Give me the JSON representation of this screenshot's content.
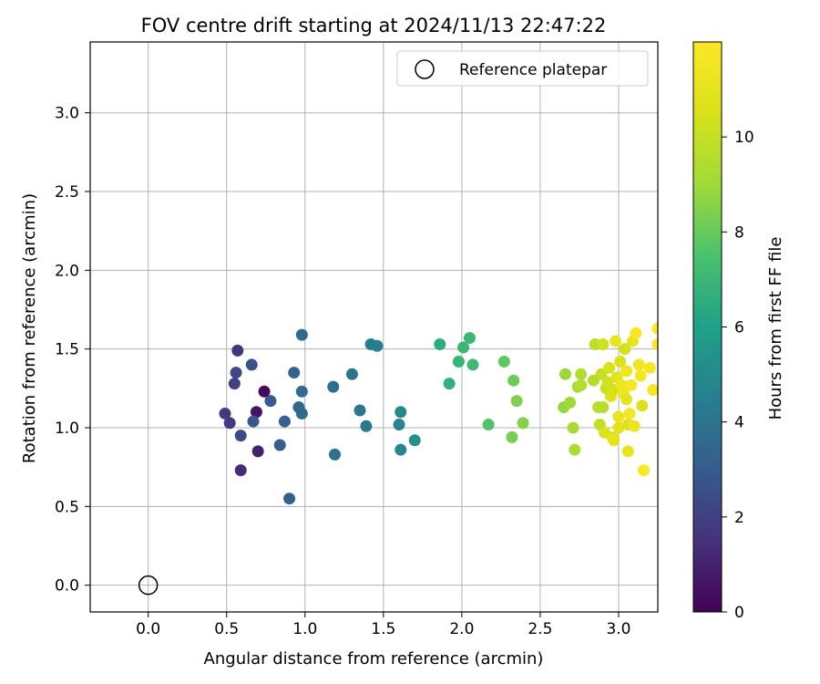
{
  "chart_data": {
    "type": "scatter",
    "title": "FOV centre drift starting at 2024/11/13 22:47:22",
    "xlabel": "Angular distance from reference (arcmin)",
    "ylabel": "Rotation from reference (arcmin)",
    "xlim": [
      -0.37,
      3.25
    ],
    "ylim": [
      -0.17,
      3.45
    ],
    "xticks": [
      0.0,
      0.5,
      1.0,
      1.5,
      2.0,
      2.5,
      3.0
    ],
    "xtick_labels": [
      "0.0",
      "0.5",
      "1.0",
      "1.5",
      "2.0",
      "2.5",
      "3.0"
    ],
    "yticks": [
      0.0,
      0.5,
      1.0,
      1.5,
      2.0,
      2.5,
      3.0
    ],
    "ytick_labels": [
      "0.0",
      "0.5",
      "1.0",
      "1.5",
      "2.0",
      "2.5",
      "3.0"
    ],
    "grid": true,
    "legend": {
      "position": "upper-right",
      "label": "Reference platepar"
    },
    "reference_point": {
      "x": 0.0,
      "y": 0.0
    },
    "colorbar": {
      "label": "Hours from first FF file",
      "colormap": "viridis",
      "range": [
        0,
        12
      ],
      "ticks": [
        0,
        2,
        4,
        6,
        8,
        10
      ],
      "tick_labels": [
        "0",
        "2",
        "4",
        "6",
        "8",
        "10"
      ]
    },
    "points": [
      [
        0.74,
        1.23,
        0.3
      ],
      [
        0.69,
        1.1,
        0.6
      ],
      [
        0.7,
        0.85,
        1.0
      ],
      [
        0.59,
        0.73,
        1.3
      ],
      [
        0.57,
        1.49,
        1.5
      ],
      [
        0.52,
        1.03,
        1.7
      ],
      [
        0.49,
        1.09,
        1.8
      ],
      [
        0.55,
        1.28,
        2.0
      ],
      [
        0.56,
        1.35,
        2.2
      ],
      [
        0.59,
        0.95,
        2.4
      ],
      [
        0.66,
        1.4,
        2.6
      ],
      [
        0.67,
        1.04,
        2.8
      ],
      [
        0.78,
        1.17,
        3.0
      ],
      [
        0.84,
        0.89,
        3.1
      ],
      [
        0.87,
        1.04,
        3.2
      ],
      [
        0.9,
        0.55,
        3.3
      ],
      [
        0.93,
        1.35,
        3.4
      ],
      [
        0.96,
        1.13,
        3.5
      ],
      [
        0.98,
        1.09,
        3.6
      ],
      [
        0.98,
        1.59,
        3.6
      ],
      [
        0.98,
        1.23,
        3.7
      ],
      [
        1.18,
        1.26,
        3.8
      ],
      [
        1.19,
        0.83,
        3.9
      ],
      [
        1.3,
        1.34,
        4.0
      ],
      [
        1.35,
        1.11,
        4.1
      ],
      [
        1.39,
        1.01,
        4.2
      ],
      [
        1.42,
        1.53,
        4.5
      ],
      [
        1.46,
        1.52,
        4.6
      ],
      [
        1.6,
        1.02,
        4.7
      ],
      [
        1.61,
        0.86,
        4.8
      ],
      [
        1.61,
        1.1,
        5.0
      ],
      [
        1.7,
        0.92,
        5.3
      ],
      [
        1.86,
        1.53,
        6.5
      ],
      [
        1.92,
        1.28,
        6.7
      ],
      [
        1.98,
        1.42,
        6.9
      ],
      [
        2.01,
        1.51,
        7.0
      ],
      [
        2.05,
        1.57,
        7.0
      ],
      [
        2.07,
        1.4,
        7.1
      ],
      [
        2.17,
        1.02,
        7.6
      ],
      [
        2.27,
        1.42,
        7.9
      ],
      [
        2.32,
        0.94,
        8.3
      ],
      [
        2.33,
        1.3,
        8.1
      ],
      [
        2.35,
        1.17,
        8.4
      ],
      [
        2.39,
        1.03,
        8.5
      ],
      [
        2.65,
        1.13,
        8.8
      ],
      [
        2.66,
        1.34,
        8.9
      ],
      [
        2.69,
        1.16,
        9.0
      ],
      [
        2.71,
        1.0,
        9.2
      ],
      [
        2.72,
        0.86,
        9.3
      ],
      [
        2.74,
        1.26,
        9.1
      ],
      [
        2.76,
        1.34,
        9.4
      ],
      [
        2.76,
        1.27,
        9.6
      ],
      [
        2.84,
        1.3,
        9.5
      ],
      [
        2.85,
        1.53,
        9.8
      ],
      [
        2.87,
        1.13,
        9.7
      ],
      [
        2.88,
        1.02,
        9.9
      ],
      [
        2.89,
        1.34,
        10.0
      ],
      [
        2.9,
        1.53,
        10.2
      ],
      [
        2.9,
        1.13,
        9.6
      ],
      [
        2.91,
        0.97,
        10.6
      ],
      [
        2.92,
        1.25,
        10.1
      ],
      [
        2.93,
        1.29,
        10.3
      ],
      [
        2.94,
        1.38,
        10.5
      ],
      [
        2.95,
        1.2,
        10.7
      ],
      [
        2.96,
        0.94,
        10.8
      ],
      [
        2.97,
        0.92,
        11.0
      ],
      [
        2.97,
        1.24,
        10.4
      ],
      [
        2.98,
        1.55,
        11.1
      ],
      [
        2.99,
        1.32,
        11.0
      ],
      [
        3.0,
        1.0,
        10.9
      ],
      [
        3.0,
        1.07,
        11.2
      ],
      [
        3.01,
        1.42,
        10.6
      ],
      [
        3.02,
        1.27,
        11.3
      ],
      [
        3.03,
        1.22,
        11.4
      ],
      [
        3.04,
        1.5,
        10.3
      ],
      [
        3.05,
        1.18,
        11.0
      ],
      [
        3.05,
        1.36,
        11.5
      ],
      [
        3.06,
        1.02,
        10.8
      ],
      [
        3.06,
        0.85,
        11.1
      ],
      [
        3.07,
        1.09,
        11.6
      ],
      [
        3.08,
        1.27,
        11.7
      ],
      [
        3.09,
        1.55,
        11.2
      ],
      [
        3.1,
        1.01,
        11.4
      ],
      [
        3.11,
        1.6,
        11.8
      ],
      [
        3.13,
        1.4,
        11.5
      ],
      [
        3.14,
        1.33,
        11.6
      ],
      [
        3.15,
        1.14,
        10.7
      ],
      [
        3.16,
        0.73,
        11.9
      ],
      [
        3.2,
        1.38,
        11.7
      ],
      [
        3.22,
        1.24,
        11.8
      ],
      [
        3.25,
        1.63,
        11.9
      ],
      [
        3.25,
        1.53,
        11.9
      ]
    ]
  }
}
